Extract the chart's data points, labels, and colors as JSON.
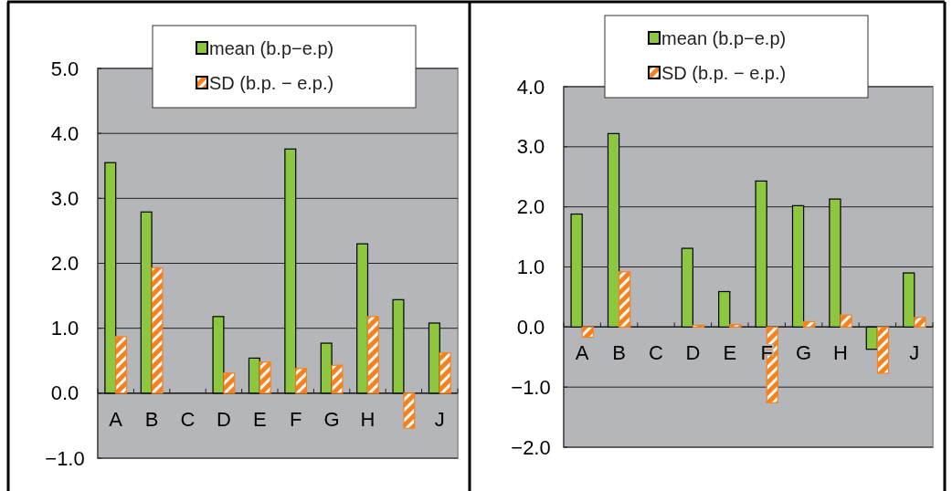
{
  "chart_data": [
    {
      "type": "bar",
      "categories": [
        "A",
        "B",
        "C",
        "D",
        "E",
        "F",
        "G",
        "H",
        null,
        "J"
      ],
      "series": [
        {
          "name": "mean (b.p−e.p)",
          "color": "#8dc63f",
          "values": [
            3.55,
            2.79,
            null,
            1.18,
            0.54,
            3.76,
            0.77,
            2.3,
            1.44,
            1.08
          ]
        },
        {
          "name": "SD (b.p. − e.p.)",
          "color": "#f5821f",
          "values": [
            0.87,
            1.93,
            null,
            0.31,
            0.48,
            0.38,
            0.43,
            1.18,
            -0.54,
            0.62
          ]
        }
      ],
      "ylim": [
        -1,
        5
      ],
      "yticks": [
        {
          "value": -1,
          "label": "−1.0"
        },
        {
          "value": 0,
          "label": "0.0"
        },
        {
          "value": 1,
          "label": "1.0"
        },
        {
          "value": 2,
          "label": "2.0"
        },
        {
          "value": 3,
          "label": "3.0"
        },
        {
          "value": 4,
          "label": "4.0"
        },
        {
          "value": 5,
          "label": "5.0"
        }
      ],
      "grid": "y",
      "legend": "top"
    },
    {
      "type": "bar",
      "categories": [
        "A",
        "B",
        "C",
        "D",
        "E",
        "F",
        "G",
        "H",
        null,
        "J"
      ],
      "series": [
        {
          "name": "mean (b.p−e.p)",
          "color": "#8dc63f",
          "values": [
            1.88,
            3.22,
            null,
            1.31,
            0.59,
            2.43,
            2.02,
            2.13,
            -0.37,
            0.9
          ]
        },
        {
          "name": "SD (b.p. − e.p.)",
          "color": "#f5821f",
          "values": [
            -0.17,
            0.92,
            null,
            0.03,
            0.04,
            -1.26,
            0.09,
            0.2,
            -0.77,
            0.16
          ]
        }
      ],
      "ylim": [
        -2,
        4
      ],
      "yticks": [
        {
          "value": -2,
          "label": "−2.0"
        },
        {
          "value": -1,
          "label": "−1.0"
        },
        {
          "value": 0,
          "label": "0.0"
        },
        {
          "value": 1,
          "label": "1.0"
        },
        {
          "value": 2,
          "label": "2.0"
        },
        {
          "value": 3,
          "label": "3.0"
        },
        {
          "value": 4,
          "label": "4.0"
        }
      ],
      "grid": "y",
      "legend": "top"
    }
  ]
}
